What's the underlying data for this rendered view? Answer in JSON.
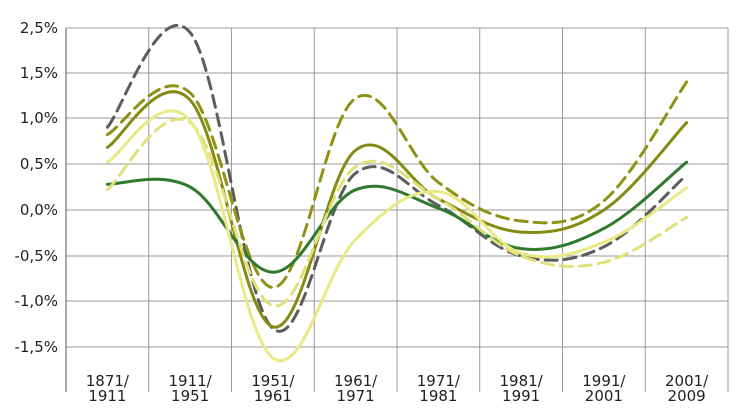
{
  "chart_data": {
    "type": "line",
    "title": "",
    "xlabel": "",
    "ylabel": "",
    "categories": [
      [
        "1871/",
        "1911"
      ],
      [
        "1911/",
        "1951"
      ],
      [
        "1951/",
        "1961"
      ],
      [
        "1961/",
        "1971"
      ],
      [
        "1971/",
        "1981"
      ],
      [
        "1981/",
        "1991"
      ],
      [
        "1991/",
        "2001"
      ],
      [
        "2001/",
        "2009"
      ]
    ],
    "y_ticks": [
      "2,5%",
      "1,5%",
      "1,0%",
      "0,5%",
      "0,0%",
      "-0,5%",
      "-1,0%",
      "-1,5%"
    ],
    "y_tick_values": [
      2.5,
      1.5,
      1.0,
      0.5,
      0.0,
      -0.5,
      -1.0,
      -1.5
    ],
    "ylim": [
      -1.5,
      2.5
    ],
    "grid": true,
    "legend": "none",
    "series": [
      {
        "color": "#5c5c5c",
        "dash": "dashed",
        "values": [
          0.9,
          2.4,
          -1.3,
          0.4,
          0.05,
          -0.5,
          -0.4,
          0.38
        ]
      },
      {
        "color": "#8f9214",
        "dash": "dashed",
        "values": [
          0.82,
          1.28,
          -0.85,
          1.22,
          0.3,
          -0.12,
          0.1,
          1.4
        ]
      },
      {
        "color": "#858a12",
        "dash": "solid",
        "values": [
          0.68,
          1.2,
          -1.28,
          0.65,
          0.12,
          -0.24,
          0.0,
          0.95
        ]
      },
      {
        "color": "#2f7a2f",
        "dash": "solid",
        "values": [
          0.28,
          0.25,
          -0.68,
          0.22,
          0.02,
          -0.42,
          -0.2,
          0.52
        ]
      },
      {
        "color": "#e2e07a",
        "dash": "dashed",
        "values": [
          0.22,
          0.95,
          -1.05,
          0.47,
          0.12,
          -0.5,
          -0.57,
          -0.08
        ]
      },
      {
        "color": "#e9e985",
        "dash": "solid",
        "values": [
          0.52,
          0.97,
          -1.62,
          -0.32,
          0.2,
          -0.47,
          -0.35,
          0.24
        ]
      }
    ]
  }
}
